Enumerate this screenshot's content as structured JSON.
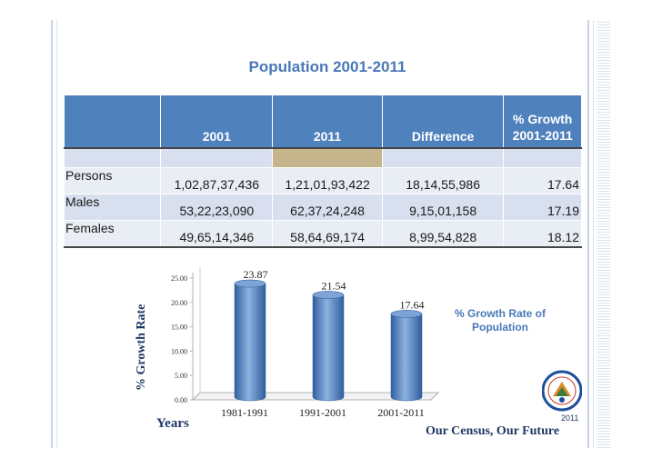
{
  "title": "Population 2001-2011",
  "table": {
    "headers": [
      "",
      "2001",
      "2011",
      "Difference",
      "% Growth\n2001-2011"
    ],
    "header_growth_line1": "% Growth",
    "header_growth_line2": "2001-2011",
    "rows": [
      {
        "label": "Persons",
        "v2001": "1,02,87,37,436",
        "v2011": "1,21,01,93,422",
        "diff": "18,14,55,986",
        "growth": "17.64"
      },
      {
        "label": "Males",
        "v2001": "53,22,23,090",
        "v2011": "62,37,24,248",
        "diff": "9,15,01,158",
        "growth": "17.19"
      },
      {
        "label": "Females",
        "v2001": "49,65,14,346",
        "v2011": "58,64,69,174",
        "diff": "8,99,54,828",
        "growth": "18.12"
      }
    ]
  },
  "chart_data": {
    "type": "bar",
    "categories": [
      "1981-1991",
      "1991-2001",
      "2001-2011"
    ],
    "values": [
      23.87,
      21.54,
      17.64
    ],
    "data_labels": [
      "23.87",
      "21.54",
      "17.64"
    ],
    "yticks": [
      "0.00",
      "5.00",
      "10.00",
      "15.00",
      "20.00",
      "25.00"
    ],
    "ylim": [
      0,
      25
    ],
    "ylabel": "% Growth Rate",
    "xlabel": "Years",
    "legend": "% Growth Rate of Population",
    "bar_color": "#4f81bd",
    "grid": false
  },
  "footer": {
    "motto": "Our Census, Our Future",
    "seal_year": "2011",
    "seal_icon": "census-india-seal-icon"
  },
  "colors": {
    "title": "#4a78b8",
    "header_bg": "#4f81bd",
    "highlight_column": "#c5b48c"
  }
}
